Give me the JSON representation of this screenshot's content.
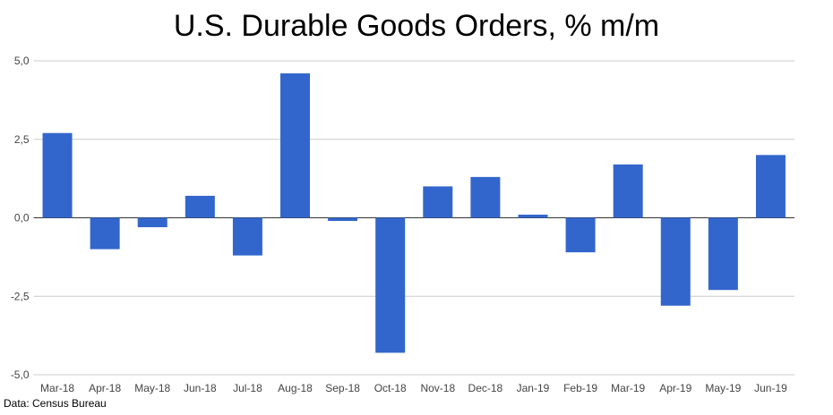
{
  "chart_data": {
    "type": "bar",
    "title": "U.S. Durable Goods Orders, % m/m",
    "source": "Data: Census Bureau",
    "xlabel": "",
    "ylabel": "",
    "ylim": [
      -5,
      5
    ],
    "yticks": [
      5,
      2.5,
      0,
      -2.5,
      -5
    ],
    "ytick_labels": [
      "5,0",
      "2,5",
      "0,0",
      "-2,5",
      "-5,0"
    ],
    "grid": true,
    "bar_color": "#3366cc",
    "categories": [
      "Mar-18",
      "Apr-18",
      "May-18",
      "Jun-18",
      "Jul-18",
      "Aug-18",
      "Sep-18",
      "Oct-18",
      "Nov-18",
      "Dec-18",
      "Jan-19",
      "Feb-19",
      "Mar-19",
      "Apr-19",
      "May-19",
      "Jun-19"
    ],
    "values": [
      2.7,
      -1.0,
      -0.3,
      0.7,
      -1.2,
      4.6,
      -0.1,
      -4.3,
      1.0,
      1.3,
      0.1,
      -1.1,
      1.7,
      -2.8,
      -2.3,
      2.0
    ]
  }
}
